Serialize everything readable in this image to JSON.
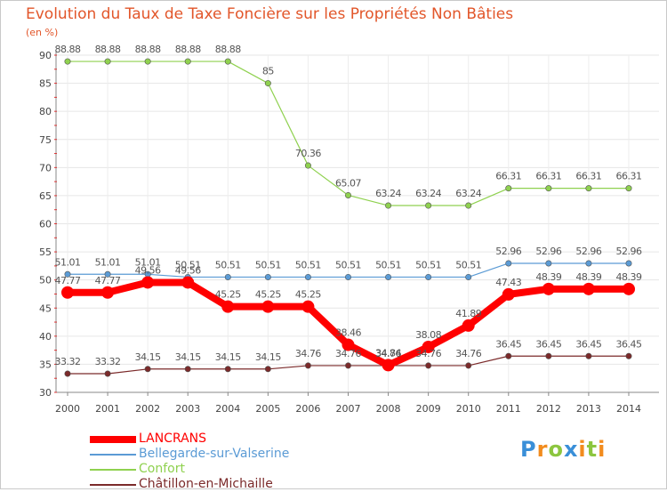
{
  "title": "Evolution du Taux de Taxe Foncière sur les Propriétés Non Bâties",
  "unit_label": "(en %)",
  "chart_data": {
    "type": "line",
    "title": "Evolution du Taux de Taxe Foncière sur les Propriétés Non Bâties",
    "ylabel": "(en %)",
    "xlabel": "",
    "ylim": [
      30,
      90
    ],
    "yticks": [
      30,
      35,
      40,
      45,
      50,
      55,
      60,
      65,
      70,
      75,
      80,
      85,
      90
    ],
    "x": [
      "2000",
      "2001",
      "2002",
      "2003",
      "2004",
      "2005",
      "2006",
      "2007",
      "2008",
      "2009",
      "2010",
      "2011",
      "2012",
      "2013",
      "2014"
    ],
    "grid": true,
    "series": [
      {
        "name": "LANCRANS",
        "color": "#ff0000",
        "emphasis": true,
        "values": [
          47.77,
          47.77,
          49.56,
          49.56,
          45.25,
          45.25,
          45.25,
          38.46,
          34.84,
          38.08,
          41.89,
          47.43,
          48.39,
          48.39,
          48.39
        ]
      },
      {
        "name": "Bellegarde-sur-Valserine",
        "color": "#5b9bd5",
        "emphasis": false,
        "values": [
          51.01,
          51.01,
          51.01,
          50.51,
          50.51,
          50.51,
          50.51,
          50.51,
          50.51,
          50.51,
          50.51,
          52.96,
          52.96,
          52.96,
          52.96
        ]
      },
      {
        "name": "Confort",
        "color": "#8fd14f",
        "emphasis": false,
        "values": [
          88.88,
          88.88,
          88.88,
          88.88,
          88.88,
          85,
          70.36,
          65.07,
          63.24,
          63.24,
          63.24,
          66.31,
          66.31,
          66.31,
          66.31
        ]
      },
      {
        "name": "Châtillon-en-Michaille",
        "color": "#7b2a2a",
        "emphasis": false,
        "values": [
          33.32,
          33.32,
          34.15,
          34.15,
          34.15,
          34.15,
          34.76,
          34.76,
          34.76,
          34.76,
          34.76,
          36.45,
          36.45,
          36.45,
          36.45
        ]
      }
    ]
  },
  "branding": {
    "logo_letters": [
      "P",
      "r",
      "o",
      "x",
      "i",
      "t",
      "i"
    ],
    "logo_colors": [
      "#3a8fd8",
      "#f28c1e",
      "#8cc63f",
      "#3a8fd8",
      "#f28c1e",
      "#8cc63f",
      "#f28c1e"
    ]
  }
}
